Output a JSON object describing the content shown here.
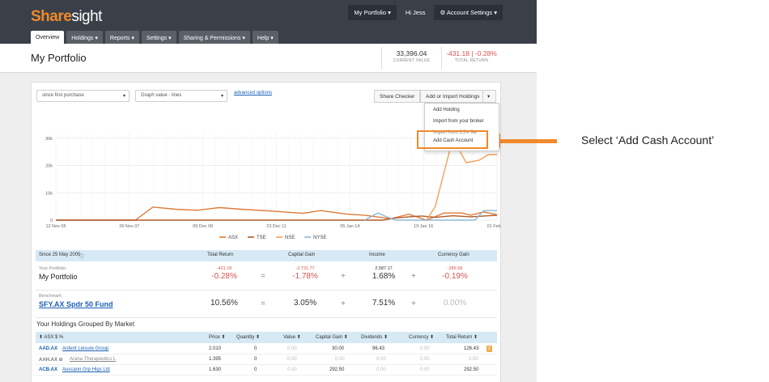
{
  "app": {
    "logo_part1": "Share",
    "logo_part2": "sight",
    "topnav": [
      "My Portfolio ▾",
      "Hi Jess",
      "⚙ Account Settings ▾"
    ],
    "tabs": [
      "Overview",
      "Holdings ▾",
      "Reports ▾",
      "Settings ▾",
      "Sharing & Permissions ▾",
      "Help ▾"
    ]
  },
  "header": {
    "title": "My Portfolio",
    "current_value": "33,396.04",
    "current_value_label": "CURRENT VALUE",
    "total_return": "-431.18 | -0.28%",
    "total_return_label": "TOTAL RETURN"
  },
  "controls": {
    "period_select": "since first purchase",
    "graph_select": "Graph value - lines",
    "advanced_link": "advanced options",
    "share_checker": "Share Checker",
    "add_import": "Add or Import Holdings",
    "dropdown_toggle": "▾"
  },
  "dropdown": {
    "items": [
      "Add Holding",
      "Import from your broker",
      "Import from CSV file",
      "Add Cash Account"
    ]
  },
  "chart_data": {
    "type": "line",
    "x": [
      "12 Nov 05",
      "26 Nov 07",
      "09 Dec 09",
      "23 Dec 11",
      "05 Jan 14",
      "19 Jan 16",
      "01 Feb 18"
    ],
    "y_ticks": [
      "0",
      "10k",
      "20k",
      "30k"
    ],
    "ylim": [
      0,
      32000
    ],
    "legend": [
      "ASX",
      "TSE",
      "NSE",
      "NYSE"
    ],
    "legend_position": "bottom",
    "grid": true,
    "series": [
      {
        "name": "ASX",
        "color": "#e07b39",
        "points": [
          [
            0,
            0
          ],
          [
            0.08,
            0
          ],
          [
            0.18,
            0
          ],
          [
            0.22,
            4800
          ],
          [
            0.27,
            4000
          ],
          [
            0.32,
            3600
          ],
          [
            0.37,
            4600
          ],
          [
            0.42,
            4000
          ],
          [
            0.5,
            3200
          ],
          [
            0.56,
            2500
          ],
          [
            0.6,
            3500
          ],
          [
            0.66,
            2200
          ],
          [
            0.7,
            1800
          ],
          [
            0.76,
            500
          ],
          [
            0.8,
            2200
          ],
          [
            0.84,
            0
          ],
          [
            0.88,
            2600
          ],
          [
            0.92,
            2600
          ],
          [
            0.94,
            1800
          ],
          [
            0.97,
            3000
          ],
          [
            1.0,
            2000
          ]
        ]
      },
      {
        "name": "TSE",
        "color": "#b05a2a",
        "points": [
          [
            0,
            0
          ],
          [
            0.74,
            0
          ],
          [
            0.77,
            800
          ],
          [
            0.8,
            1200
          ],
          [
            0.83,
            1500
          ],
          [
            0.86,
            1000
          ],
          [
            0.9,
            1600
          ],
          [
            0.94,
            1200
          ],
          [
            0.97,
            1500
          ],
          [
            1.0,
            1800
          ]
        ]
      },
      {
        "name": "NSE",
        "color": "#f5a05a",
        "points": [
          [
            0.84,
            0
          ],
          [
            0.86,
            5000
          ],
          [
            0.9,
            30000
          ],
          [
            0.93,
            21000
          ],
          [
            0.96,
            22000
          ],
          [
            0.98,
            24000
          ],
          [
            1.0,
            24000
          ]
        ]
      },
      {
        "name": "NYSE",
        "color": "#8fb8d4",
        "points": [
          [
            0.7,
            0
          ],
          [
            0.73,
            2600
          ],
          [
            0.75,
            1200
          ],
          [
            0.77,
            0
          ],
          [
            0.95,
            0
          ],
          [
            0.97,
            3500
          ],
          [
            1.0,
            3500
          ]
        ]
      }
    ]
  },
  "summary": {
    "since_label": "Since 25 May 2005",
    "headers": [
      "Total Return",
      "Capital Gain",
      "Income",
      "Currency Gain"
    ],
    "portfolio_label_small": "Your Portfolio:",
    "portfolio_label": "My Portfolio",
    "portfolio": [
      {
        "small": "-431.18",
        "big": "-0.28%"
      },
      {
        "small": "-2,731.77",
        "big": "-1.78%"
      },
      {
        "small": "2,587.17",
        "big": "1.68%"
      },
      {
        "small": "-286.58",
        "big": "-0.19%"
      }
    ],
    "benchmark_label_small": "Benchmark:",
    "benchmark_label": "SFY.AX Spdr 50 Fund",
    "benchmark": [
      "10.56%",
      "3.05%",
      "7.51%",
      "0.00%"
    ],
    "ops": [
      "=",
      "+",
      "+"
    ]
  },
  "holdings": {
    "title": "Your Holdings Grouped By Market",
    "group_label": "⬍ ASX $ %",
    "columns": [
      "Price ⬍",
      "Quantity ⬍",
      "Value ⬍",
      "Capital Gain ⬍",
      "Dividends ⬍",
      "Currency ⬍",
      "Total Return ⬍"
    ],
    "rows": [
      {
        "code": "AAD.AX",
        "name": "Ardent Leisure Group",
        "price": "2.010",
        "qty": "0",
        "value": "0.00",
        "capgain": "30.00",
        "div": "96.43",
        "cur": "0.00",
        "total": "126.43",
        "tag": "2"
      },
      {
        "code": "AAH.AX ⊘",
        "name": "Arana Therapeutics L",
        "price": "1.395",
        "qty": "0",
        "value": "0.00",
        "capgain": "0.00",
        "div": "0.00",
        "cur": "0.00",
        "total": "0.00",
        "tag": ""
      },
      {
        "code": "ACB.AX",
        "name": "Auscann Grp Hlgs Ltd",
        "price": "1.630",
        "qty": "0",
        "value": "0.00",
        "capgain": "292.50",
        "div": "0.00",
        "cur": "0.00",
        "total": "292.50",
        "tag": ""
      }
    ]
  },
  "annotation": {
    "text": "Select ‘Add Cash Account’",
    "color": "#f08a2c"
  }
}
